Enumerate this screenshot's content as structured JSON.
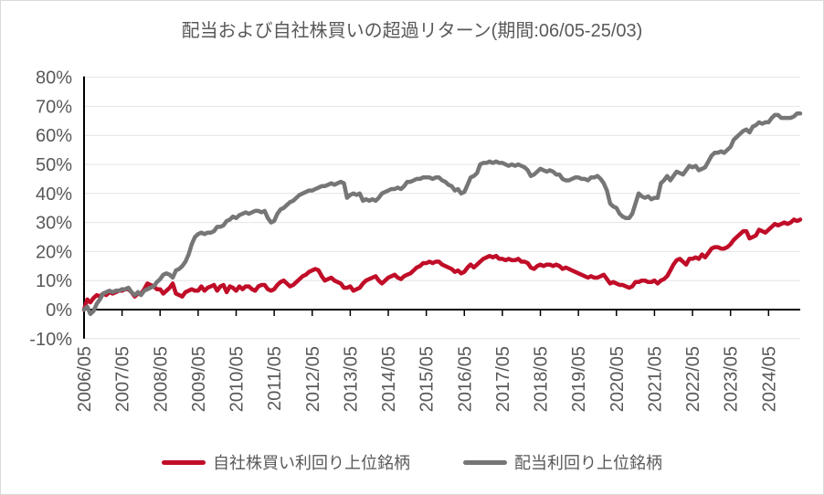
{
  "window": {
    "background": "#FFFFFF",
    "border_color": "#D9D9D9",
    "text_color": "#595959",
    "axis_color": "#000000",
    "gridline_color": "#E4E4E4"
  },
  "chart_data": {
    "type": "line",
    "title": "配当および自社株買いの超過リターン(期間:06/05-25/03)",
    "xlabel": "",
    "ylabel": "",
    "y_unit": "%",
    "ylim": [
      -10,
      80
    ],
    "grid": "horizontal",
    "legend_position": "bottom",
    "x_start": "2006/05",
    "x_end": "2025/03",
    "points_frequency": "monthly",
    "x_tick_labels": [
      "2006/05",
      "2007/05",
      "2008/05",
      "2009/05",
      "2010/05",
      "2011/05",
      "2012/05",
      "2013/05",
      "2014/05",
      "2015/05",
      "2016/05",
      "2017/05",
      "2018/05",
      "2019/05",
      "2020/05",
      "2021/05",
      "2022/05",
      "2023/05",
      "2024/05"
    ],
    "x_tick_month_indices": [
      0,
      12,
      24,
      36,
      48,
      60,
      72,
      84,
      96,
      108,
      120,
      132,
      144,
      156,
      168,
      180,
      192,
      204,
      216
    ],
    "y_ticks": [
      80,
      70,
      60,
      50,
      40,
      30,
      20,
      10,
      0,
      -10
    ],
    "y_tick_labels": [
      "80%",
      "70%",
      "60%",
      "50%",
      "40%",
      "30%",
      "20%",
      "10%",
      "0%",
      "-10%"
    ],
    "series": [
      {
        "name": "自社株買い利回り上位銘柄",
        "id": "buyback",
        "color": "#C00D28",
        "values": [
          0,
          3.5,
          2.5,
          4,
          5,
          4.5,
          5.5,
          5,
          6,
          5.5,
          6,
          6.5,
          6.5,
          7,
          7,
          6,
          4.5,
          5.5,
          5.5,
          7,
          9,
          8.5,
          8,
          7,
          7,
          5.5,
          6.5,
          7.5,
          9,
          5.5,
          5,
          4.5,
          6,
          6.5,
          7,
          6.5,
          6.5,
          8,
          6.5,
          7.5,
          8,
          8.5,
          6.5,
          8,
          8.5,
          6,
          8,
          7.5,
          6.5,
          8,
          7,
          8,
          8,
          7,
          6.5,
          8,
          8.5,
          8.5,
          7,
          6.5,
          7,
          8.5,
          9.5,
          10,
          9,
          8,
          8.5,
          9.5,
          10.5,
          11.5,
          12,
          13,
          13.5,
          14,
          13.5,
          11.5,
          10,
          10.5,
          11,
          10,
          9.5,
          9,
          7.5,
          7.5,
          8,
          6.5,
          7,
          7.5,
          9,
          10,
          10.5,
          11,
          11.5,
          10,
          9,
          10,
          11,
          11.5,
          12,
          11,
          10.5,
          11.5,
          12,
          12.5,
          13.5,
          14.5,
          15,
          16,
          16,
          16.5,
          16,
          16.5,
          16.5,
          15.5,
          15,
          14.5,
          14,
          13,
          13.5,
          12.5,
          13,
          14.5,
          15.5,
          14.5,
          15.5,
          16.5,
          17.5,
          18,
          18.5,
          18,
          18.5,
          17.5,
          17.5,
          17,
          17.5,
          17,
          17,
          17.5,
          16.5,
          16.5,
          16,
          14.5,
          14,
          15,
          15.5,
          15,
          15.5,
          15.5,
          15,
          15.5,
          15,
          14,
          14.5,
          14,
          13.5,
          13,
          12.5,
          12,
          11.5,
          11,
          11.5,
          11,
          11,
          11.5,
          12,
          10.5,
          9,
          9.5,
          9,
          8.5,
          8.5,
          8,
          7.5,
          8,
          9.5,
          9.5,
          10,
          10,
          9.5,
          9.5,
          10,
          9,
          10,
          10.5,
          11.5,
          13.5,
          15.5,
          17,
          17.5,
          16.5,
          15.5,
          17.5,
          17.5,
          18,
          17.5,
          19,
          18,
          19.5,
          21,
          21.5,
          21.5,
          21,
          21,
          21.5,
          22.5,
          24,
          25,
          26,
          27,
          27,
          24.5,
          25,
          25.5,
          27.5,
          27,
          26.5,
          27.5,
          28.5,
          29.5,
          29,
          29.5,
          30,
          29.5,
          30,
          31,
          30.5,
          31
        ]
      },
      {
        "name": "配当利回り上位銘柄",
        "id": "dividend",
        "color": "#767676",
        "values": [
          0,
          1,
          -1.5,
          -0.5,
          2,
          3.5,
          5.5,
          6,
          6.5,
          6,
          6.5,
          6.5,
          7,
          7,
          7.5,
          6,
          5,
          6,
          5,
          6.5,
          7,
          7.5,
          8,
          9.5,
          10.5,
          12,
          12.5,
          12,
          11,
          13.5,
          14,
          15,
          16.5,
          19,
          22.5,
          25,
          26,
          26.5,
          26,
          26.5,
          26.5,
          27,
          28.5,
          28.5,
          29,
          30.5,
          31,
          32,
          31.5,
          32.5,
          33,
          33.5,
          33,
          33.5,
          34,
          34,
          33.5,
          34,
          31.5,
          30,
          30.5,
          33,
          34.5,
          35,
          36,
          37,
          37.5,
          38.5,
          39.5,
          40,
          40.5,
          41,
          41,
          41.5,
          42,
          42.5,
          42.5,
          43,
          43.5,
          43,
          43.5,
          44,
          43.5,
          38.5,
          39.5,
          40,
          39.5,
          40,
          37.5,
          38,
          37.5,
          38,
          37.5,
          38.5,
          40,
          40.5,
          41,
          41.5,
          41.5,
          42,
          41.5,
          42.5,
          44,
          44,
          44.5,
          45,
          45,
          45.5,
          45.5,
          45.5,
          45,
          45.5,
          45.5,
          44.5,
          44,
          43,
          42.5,
          41,
          41.5,
          40,
          40.5,
          43,
          45.5,
          46,
          47,
          50,
          50.5,
          50.5,
          51,
          50.5,
          51,
          50.5,
          50.5,
          50,
          49.5,
          50,
          49.5,
          50,
          49.5,
          49,
          48,
          46,
          46.5,
          47.5,
          48.5,
          48,
          47.5,
          48,
          47.5,
          46.5,
          46.5,
          45,
          44.5,
          44.5,
          45,
          45.5,
          45.5,
          45,
          45,
          44.5,
          45.5,
          45.5,
          46,
          45,
          43.5,
          41,
          36.5,
          35.5,
          35,
          33,
          32,
          31.5,
          31.5,
          33,
          36.5,
          40,
          39,
          38.5,
          39,
          38,
          38.5,
          38.5,
          43.5,
          44.5,
          46,
          44.5,
          46,
          47.5,
          47,
          46.5,
          48,
          49.5,
          49,
          49.5,
          48,
          48.5,
          49,
          51,
          53,
          54,
          54,
          54.5,
          54,
          55,
          56,
          58.5,
          59.5,
          60.5,
          61.5,
          62,
          61,
          63,
          63.5,
          64.5,
          64,
          64.5,
          64.5,
          66,
          67,
          67,
          66,
          66,
          66,
          66,
          66.5,
          67.5,
          67.5
        ]
      }
    ]
  }
}
